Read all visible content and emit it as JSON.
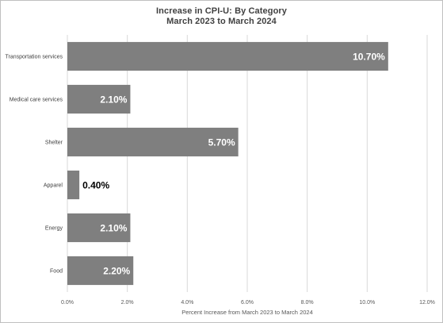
{
  "chart_data": {
    "type": "bar",
    "orientation": "horizontal",
    "title": "Increase in CPI-U: By Category",
    "subtitle": "March 2023 to March 2024",
    "xlabel": "Percent Increase from March 2023 to March 2024",
    "ylabel": "",
    "xlim": [
      0,
      12
    ],
    "x_ticks": [
      "0.0%",
      "2.0%",
      "4.0%",
      "6.0%",
      "8.0%",
      "10.0%",
      "12.0%"
    ],
    "categories": [
      "Transportation services",
      "Medical care services",
      "Shelter",
      "Apparel",
      "Energy",
      "Food"
    ],
    "values": [
      10.7,
      2.1,
      5.7,
      0.4,
      2.1,
      2.2
    ],
    "data_labels": [
      "10.70%",
      "2.10%",
      "5.70%",
      "0.40%",
      "2.10%",
      "2.20%"
    ],
    "bar_color": "#7f7f7f",
    "grid": true,
    "legend": "none"
  }
}
